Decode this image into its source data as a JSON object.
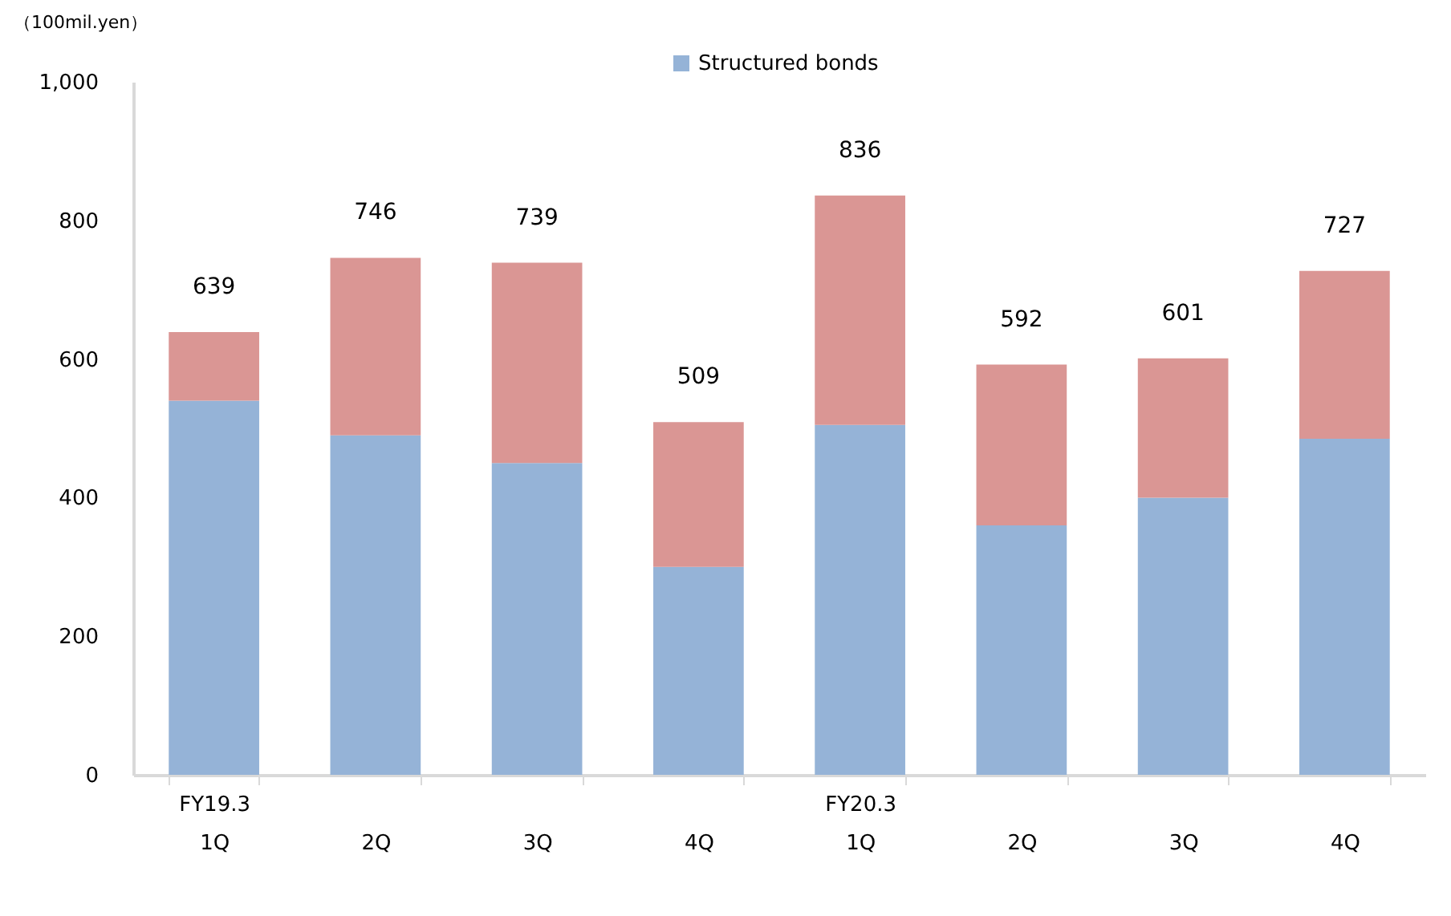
{
  "chart_data": {
    "type": "bar",
    "stacked": true,
    "ylabel": "（100mil.yen）",
    "categories": [
      "FY19.3\n1Q",
      "2Q",
      "3Q",
      "4Q",
      "FY20.3\n1Q",
      "2Q",
      "3Q",
      "4Q"
    ],
    "series": [
      {
        "name": "Structured bonds",
        "color": "#95b3d7",
        "values": [
          540,
          490,
          450,
          300,
          505,
          360,
          400,
          485
        ]
      },
      {
        "color": "#da9694",
        "values": [
          99,
          256,
          289,
          209,
          331,
          232,
          201,
          242
        ]
      }
    ],
    "totals": [
      "639",
      "746",
      "739",
      "509",
      "836",
      "592",
      "601",
      "727"
    ],
    "ylim": [
      0,
      1000
    ],
    "yticks": [
      0,
      200,
      400,
      600,
      800,
      {
        "value": 1000,
        "label": "1,000"
      }
    ],
    "legend": "top",
    "grid": false
  }
}
